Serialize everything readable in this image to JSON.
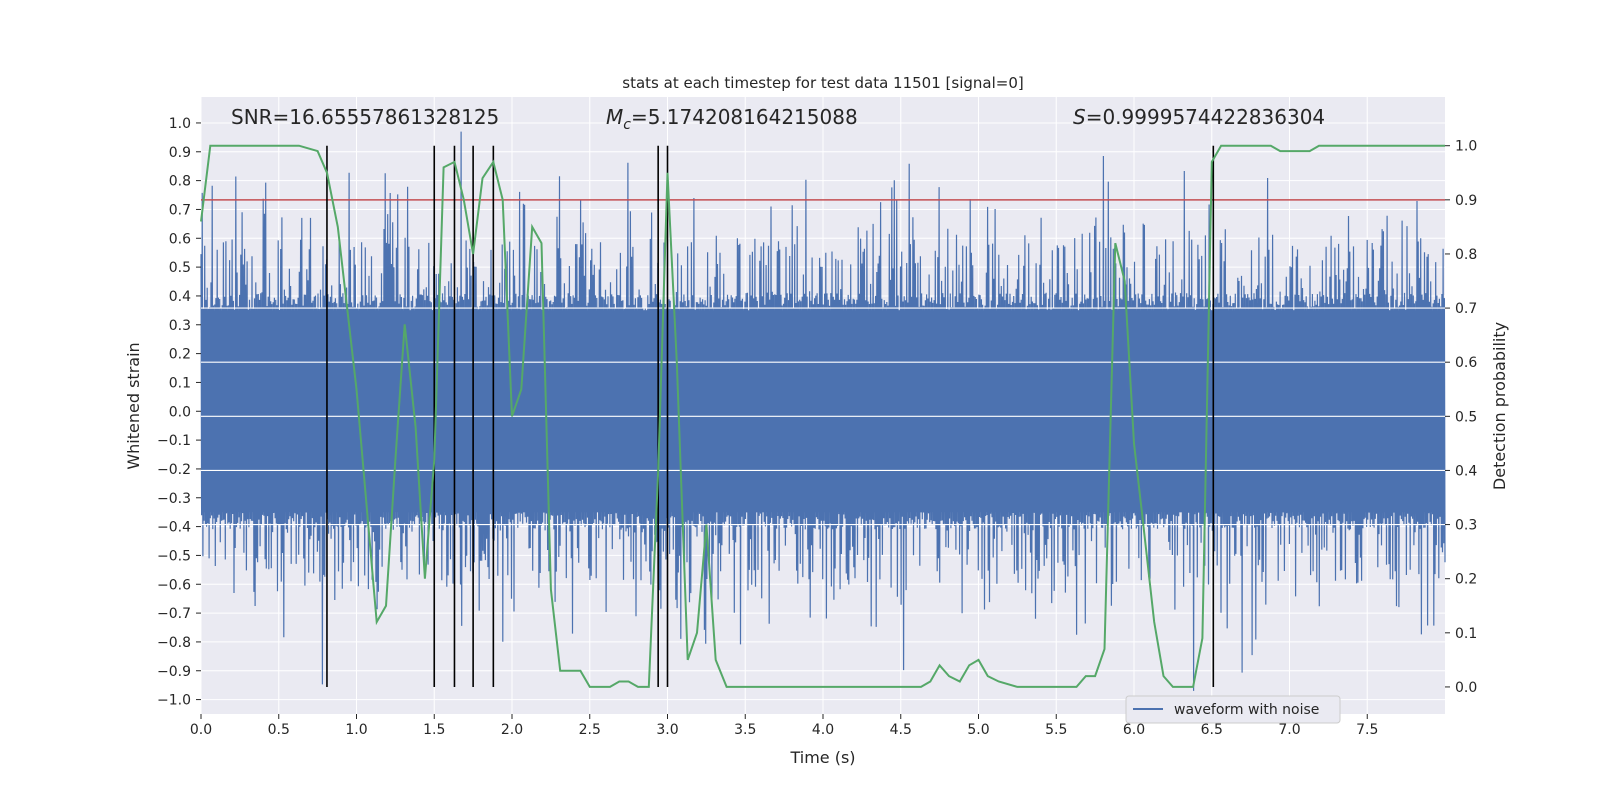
{
  "chart_data": {
    "type": "line",
    "title": "stats at each timestep for test data 11501 [signal=0]",
    "xlabel": "Time (s)",
    "ylabel": "Whitened strain",
    "y2label": "Detection probability",
    "xlim": [
      0,
      8
    ],
    "ylim": [
      -1.05,
      1.09
    ],
    "y2lim": [
      -0.05,
      1.09
    ],
    "xticks": [
      0.0,
      0.5,
      1.0,
      1.5,
      2.0,
      2.5,
      3.0,
      3.5,
      4.0,
      4.5,
      5.0,
      5.5,
      6.0,
      6.5,
      7.0,
      7.5
    ],
    "xtick_labels": [
      "0.0",
      "0.5",
      "1.0",
      "1.5",
      "2.0",
      "2.5",
      "3.0",
      "3.5",
      "4.0",
      "4.5",
      "5.0",
      "5.5",
      "6.0",
      "6.5",
      "7.0",
      "7.5"
    ],
    "yticks": [
      1.0,
      0.9,
      0.8,
      0.7,
      0.6,
      0.5,
      0.4,
      0.3,
      0.2,
      0.1,
      0.0,
      -0.1,
      -0.2,
      -0.3,
      -0.4,
      -0.5,
      -0.6,
      -0.7,
      -0.8,
      -0.9,
      -1.0
    ],
    "ytick_labels": [
      "1.0",
      "0.9",
      "0.8",
      "0.7",
      "0.6",
      "0.5",
      "0.4",
      "0.3",
      "0.2",
      "0.1",
      "0.0",
      "−0.1",
      "−0.2",
      "−0.3",
      "−0.4",
      "−0.5",
      "−0.6",
      "−0.7",
      "−0.8",
      "−0.9",
      "−1.0"
    ],
    "y2ticks": [
      1.0,
      0.9,
      0.8,
      0.7,
      0.6,
      0.5,
      0.4,
      0.3,
      0.2,
      0.1,
      0.0
    ],
    "y2tick_labels": [
      "1.0",
      "0.9",
      "0.8",
      "0.7",
      "0.6",
      "0.5",
      "0.4",
      "0.3",
      "0.2",
      "0.1",
      "0.0"
    ],
    "annotations": {
      "snr": "SNR=16.65557861328125",
      "mc_symbol": "M",
      "mc_sub": "c",
      "mc_value": "=5.174208164215088",
      "s_symbol": "S",
      "s_value": "=0.9999574422836304"
    },
    "threshold": 0.9,
    "detection_times": [
      0.81,
      1.5,
      1.63,
      1.75,
      1.88,
      2.94,
      3.0,
      6.51
    ],
    "vline_range_y2": [
      0.0,
      1.0
    ],
    "waveform": {
      "name": "waveform with noise",
      "t_range": [
        0,
        8
      ],
      "samples": 2000,
      "core_amplitude": 0.35,
      "notes": "dense noise waveform, peak |strain| up to ~1.0"
    },
    "probability_series": {
      "name": "Detection probability",
      "x": [
        0.0,
        0.06,
        0.13,
        0.25,
        0.5,
        0.63,
        0.75,
        0.81,
        0.88,
        1.0,
        1.13,
        1.19,
        1.25,
        1.31,
        1.38,
        1.44,
        1.5,
        1.56,
        1.63,
        1.69,
        1.75,
        1.81,
        1.88,
        1.94,
        2.0,
        2.06,
        2.13,
        2.19,
        2.25,
        2.31,
        2.38,
        2.44,
        2.5,
        2.56,
        2.63,
        2.69,
        2.75,
        2.81,
        2.88,
        2.94,
        3.0,
        3.06,
        3.13,
        3.19,
        3.25,
        3.31,
        3.38,
        3.44,
        3.5,
        3.63,
        3.75,
        3.88,
        4.0,
        4.25,
        4.5,
        4.63,
        4.69,
        4.75,
        4.81,
        4.88,
        4.94,
        5.0,
        5.06,
        5.13,
        5.25,
        5.38,
        5.5,
        5.63,
        5.69,
        5.75,
        5.81,
        5.88,
        5.94,
        6.0,
        6.06,
        6.13,
        6.19,
        6.25,
        6.31,
        6.38,
        6.44,
        6.5,
        6.56,
        6.63,
        6.69,
        6.75,
        6.81,
        6.88,
        6.94,
        7.0,
        7.06,
        7.13,
        7.19,
        7.25,
        7.38,
        7.5,
        7.63,
        7.75,
        7.88,
        8.0
      ],
      "y": [
        0.86,
        1.0,
        1.0,
        1.0,
        1.0,
        1.0,
        0.99,
        0.95,
        0.85,
        0.55,
        0.12,
        0.15,
        0.42,
        0.67,
        0.48,
        0.2,
        0.42,
        0.96,
        0.97,
        0.9,
        0.8,
        0.94,
        0.97,
        0.9,
        0.5,
        0.55,
        0.85,
        0.82,
        0.18,
        0.03,
        0.03,
        0.03,
        0.0,
        0.0,
        0.0,
        0.01,
        0.01,
        0.0,
        0.0,
        0.4,
        0.95,
        0.6,
        0.05,
        0.1,
        0.3,
        0.05,
        0.0,
        0.0,
        0.0,
        0.0,
        0.0,
        0.0,
        0.0,
        0.0,
        0.0,
        0.0,
        0.01,
        0.04,
        0.02,
        0.01,
        0.04,
        0.05,
        0.02,
        0.01,
        0.0,
        0.0,
        0.0,
        0.0,
        0.02,
        0.02,
        0.07,
        0.82,
        0.75,
        0.45,
        0.3,
        0.12,
        0.02,
        0.0,
        0.0,
        0.0,
        0.09,
        0.97,
        1.0,
        1.0,
        1.0,
        1.0,
        1.0,
        1.0,
        0.99,
        0.99,
        0.99,
        0.99,
        1.0,
        1.0,
        1.0,
        1.0,
        1.0,
        1.0,
        1.0,
        1.0
      ]
    },
    "legend": {
      "placement": "lower-right",
      "entries": [
        "waveform with noise"
      ]
    },
    "grid": true,
    "colors": {
      "waveform": "#4c72b0",
      "probability": "#55a868",
      "threshold": "#c44e52",
      "vlines": "#000000",
      "axes_bg": "#eaeaf2",
      "grid": "#ffffff",
      "text": "#262626"
    }
  }
}
